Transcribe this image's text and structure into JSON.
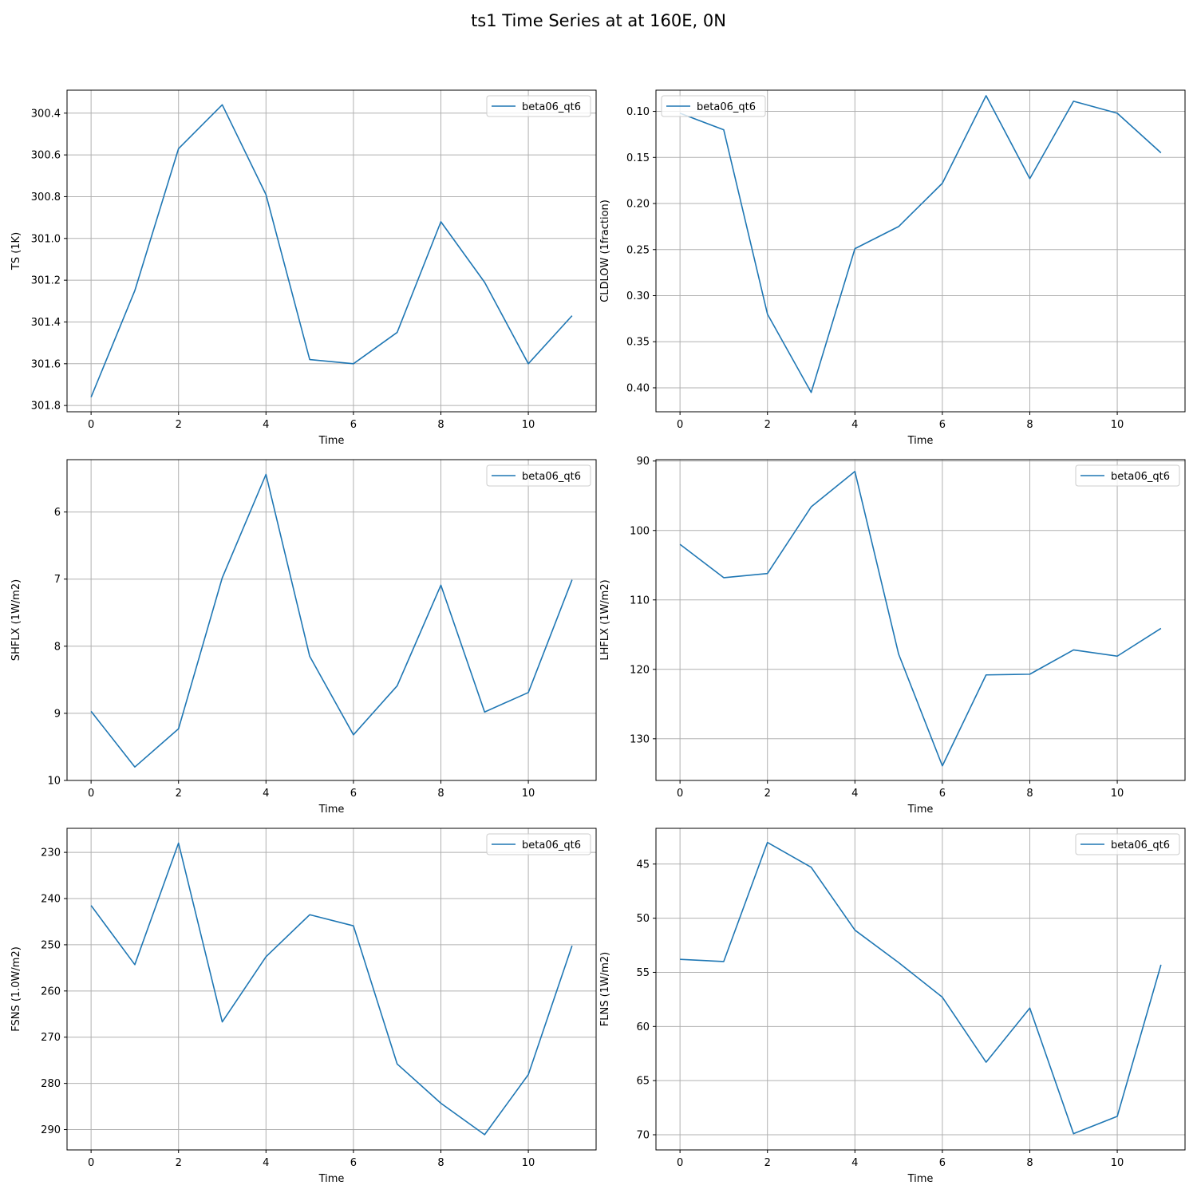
{
  "title": "ts1 Time Series at at 160E, 0N",
  "chart_data": [
    {
      "type": "line",
      "xlabel": "Time",
      "ylabel": "TS (1K)",
      "legend": "top-right",
      "grid": true,
      "y_inverted": true,
      "x": [
        0,
        1,
        2,
        3,
        4,
        5,
        6,
        7,
        8,
        9,
        10,
        11
      ],
      "xlim": [
        -0.55,
        11.55
      ],
      "xticks": [
        0,
        2,
        4,
        6,
        8,
        10
      ],
      "ylim": [
        300.29,
        301.83
      ],
      "yticks": [
        300.4,
        300.6,
        300.8,
        301.0,
        301.2,
        301.4,
        301.6,
        301.8
      ],
      "ytick_labels": [
        "300.4",
        "300.6",
        "300.8",
        "301.0",
        "301.2",
        "301.4",
        "301.6",
        "301.8"
      ],
      "series": [
        {
          "name": "beta06_qt6",
          "color": "#1f77b4",
          "values": [
            301.76,
            301.25,
            300.57,
            300.36,
            300.79,
            301.58,
            301.6,
            301.45,
            300.92,
            301.21,
            301.6,
            301.37
          ]
        }
      ]
    },
    {
      "type": "line",
      "xlabel": "Time",
      "ylabel": "CLDLOW (1fraction)",
      "legend": "top-left",
      "grid": true,
      "y_inverted": true,
      "x": [
        0,
        1,
        2,
        3,
        4,
        5,
        6,
        7,
        8,
        9,
        10,
        11
      ],
      "xlim": [
        -0.55,
        11.55
      ],
      "xticks": [
        0,
        2,
        4,
        6,
        8,
        10
      ],
      "ylim": [
        0.077,
        0.426
      ],
      "yticks": [
        0.1,
        0.15,
        0.2,
        0.25,
        0.3,
        0.35,
        0.4
      ],
      "ytick_labels": [
        "0.10",
        "0.15",
        "0.20",
        "0.25",
        "0.30",
        "0.35",
        "0.40"
      ],
      "series": [
        {
          "name": "beta06_qt6",
          "color": "#1f77b4",
          "values": [
            0.102,
            0.12,
            0.32,
            0.405,
            0.249,
            0.225,
            0.178,
            0.083,
            0.173,
            0.089,
            0.102,
            0.145
          ]
        }
      ]
    },
    {
      "type": "line",
      "xlabel": "Time",
      "ylabel": "SHFLX (1W/m2)",
      "legend": "top-right",
      "grid": true,
      "y_inverted": true,
      "x": [
        0,
        1,
        2,
        3,
        4,
        5,
        6,
        7,
        8,
        9,
        10,
        11
      ],
      "xlim": [
        -0.55,
        11.55
      ],
      "xticks": [
        0,
        2,
        4,
        6,
        8,
        10
      ],
      "ylim": [
        5.22,
        10.0
      ],
      "yticks": [
        6,
        7,
        8,
        9,
        10
      ],
      "ytick_labels": [
        "6",
        "7",
        "8",
        "9",
        "10"
      ],
      "series": [
        {
          "name": "beta06_qt6",
          "color": "#1f77b4",
          "values": [
            8.97,
            9.8,
            9.23,
            6.98,
            5.44,
            8.15,
            9.32,
            8.59,
            7.09,
            8.98,
            8.69,
            7.01
          ]
        }
      ]
    },
    {
      "type": "line",
      "xlabel": "Time",
      "ylabel": "LHFLX (1W/m2)",
      "legend": "top-right",
      "grid": true,
      "y_inverted": true,
      "x": [
        0,
        1,
        2,
        3,
        4,
        5,
        6,
        7,
        8,
        9,
        10,
        11
      ],
      "xlim": [
        -0.55,
        11.55
      ],
      "xticks": [
        0,
        2,
        4,
        6,
        8,
        10
      ],
      "ylim": [
        89.8,
        136.0
      ],
      "yticks": [
        90,
        100,
        110,
        120,
        130
      ],
      "ytick_labels": [
        "90",
        "100",
        "110",
        "120",
        "130"
      ],
      "series": [
        {
          "name": "beta06_qt6",
          "color": "#1f77b4",
          "values": [
            102.0,
            106.8,
            106.2,
            96.6,
            91.5,
            117.8,
            133.9,
            120.8,
            120.7,
            117.2,
            118.1,
            114.1
          ]
        }
      ]
    },
    {
      "type": "line",
      "xlabel": "Time",
      "ylabel": "FSNS (1.0W/m2)",
      "legend": "top-right",
      "grid": true,
      "y_inverted": true,
      "x": [
        0,
        1,
        2,
        3,
        4,
        5,
        6,
        7,
        8,
        9,
        10,
        11
      ],
      "xlim": [
        -0.55,
        11.55
      ],
      "xticks": [
        0,
        2,
        4,
        6,
        8,
        10
      ],
      "ylim": [
        224.8,
        294.4
      ],
      "yticks": [
        230,
        240,
        250,
        260,
        270,
        280,
        290
      ],
      "ytick_labels": [
        "230",
        "240",
        "250",
        "260",
        "270",
        "280",
        "290"
      ],
      "series": [
        {
          "name": "beta06_qt6",
          "color": "#1f77b4",
          "values": [
            241.5,
            254.3,
            228.0,
            266.7,
            252.6,
            243.5,
            245.9,
            275.8,
            284.3,
            291.1,
            278.1,
            250.2
          ]
        }
      ]
    },
    {
      "type": "line",
      "xlabel": "Time",
      "ylabel": "FLNS (1W/m2)",
      "legend": "top-right",
      "grid": true,
      "y_inverted": true,
      "x": [
        0,
        1,
        2,
        3,
        4,
        5,
        6,
        7,
        8,
        9,
        10,
        11
      ],
      "xlim": [
        -0.55,
        11.55
      ],
      "xticks": [
        0,
        2,
        4,
        6,
        8,
        10
      ],
      "ylim": [
        41.7,
        71.4
      ],
      "yticks": [
        45,
        50,
        55,
        60,
        65,
        70
      ],
      "ytick_labels": [
        "45",
        "50",
        "55",
        "60",
        "65",
        "70"
      ],
      "series": [
        {
          "name": "beta06_qt6",
          "color": "#1f77b4",
          "values": [
            53.8,
            54.0,
            43.0,
            45.3,
            51.1,
            54.1,
            57.3,
            63.3,
            58.3,
            69.9,
            68.3,
            54.3
          ]
        }
      ]
    }
  ]
}
